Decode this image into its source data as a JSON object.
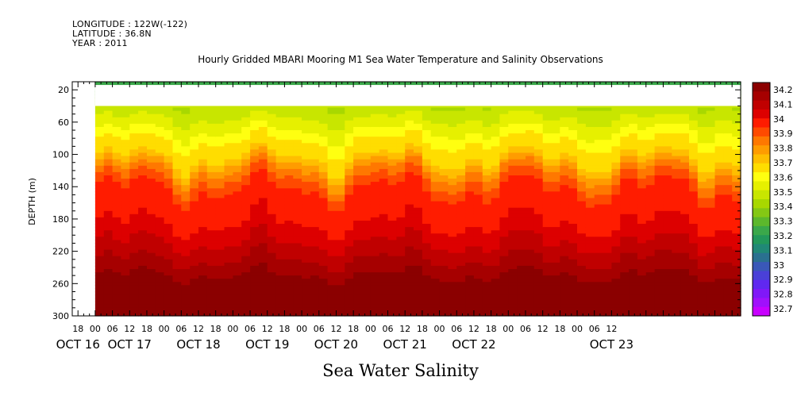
{
  "header": {
    "longitude": "LONGITUDE : 122W(-122)",
    "latitude": "LATITUDE : 36.8N",
    "year": "YEAR : 2011"
  },
  "chart_data": {
    "type": "heatmap",
    "title": "Hourly Gridded MBARI Mooring M1 Sea Water Temperature and Salinity Observations",
    "xlabel": "Sea Water Salinity",
    "ylabel": "DEPTH (m)",
    "x_hour_ticks": [
      "18",
      "00",
      "06",
      "12",
      "18",
      "00",
      "06",
      "12",
      "18",
      "00",
      "06",
      "12",
      "18",
      "00",
      "06",
      "12",
      "18",
      "00",
      "06",
      "12",
      "18",
      "00",
      "06",
      "12",
      "18",
      "00",
      "06",
      "12",
      "18",
      "00",
      "06",
      "12"
    ],
    "x_day_labels": [
      "OCT 16",
      "OCT 17",
      "OCT 18",
      "OCT 19",
      "OCT 20",
      "OCT 21",
      "OCT 22",
      "OCT 23"
    ],
    "x_range_hours": [
      -8,
      225
    ],
    "data_start_hours": 0,
    "y_ticks": [
      20,
      60,
      100,
      140,
      180,
      220,
      260,
      300
    ],
    "ylim": [
      300,
      10
    ],
    "no_data_depths": [
      14,
      40
    ],
    "colorbar": {
      "labels": [
        "34.2",
        "34.1",
        "34",
        "33.9",
        "33.8",
        "33.7",
        "33.6",
        "33.5",
        "33.4",
        "33.3",
        "33.2",
        "33.1",
        "33",
        "32.9",
        "32.8",
        "32.7"
      ],
      "colors": [
        "#8b0000",
        "#a60000",
        "#c00000",
        "#dd0000",
        "#ff1c00",
        "#ff4a00",
        "#ff7800",
        "#ff9c00",
        "#ffbe00",
        "#ffdd00",
        "#ffff10",
        "#e6f000",
        "#c8e600",
        "#a8d800",
        "#84c814",
        "#5cb82c",
        "#3aa84a",
        "#22985a",
        "#208876",
        "#2a7090",
        "#3a58b8",
        "#4a40d8",
        "#6028f0",
        "#8018f8",
        "#a010fc",
        "#c800ff"
      ],
      "min": 32.7,
      "max": 34.25
    },
    "salinity_profile": [
      {
        "depth": 10,
        "value": 33.25
      },
      {
        "depth": 40,
        "value": 33.5
      },
      {
        "depth": 60,
        "value": 33.55
      },
      {
        "depth": 80,
        "value": 33.65
      },
      {
        "depth": 100,
        "value": 33.7
      },
      {
        "depth": 120,
        "value": 33.85
      },
      {
        "depth": 140,
        "value": 33.95
      },
      {
        "depth": 180,
        "value": 34.0
      },
      {
        "depth": 220,
        "value": 34.1
      },
      {
        "depth": 240,
        "value": 34.17
      },
      {
        "depth": 260,
        "value": 34.22
      },
      {
        "depth": 300,
        "value": 34.2
      }
    ]
  }
}
